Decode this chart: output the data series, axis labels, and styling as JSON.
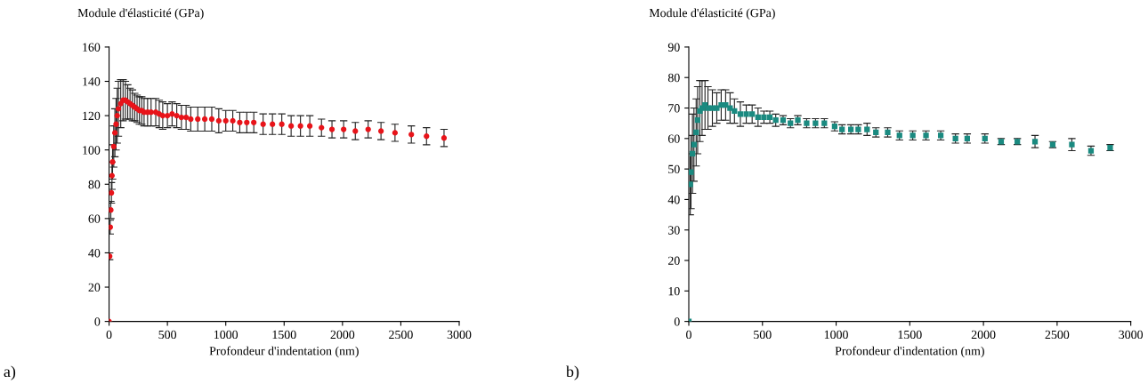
{
  "chart_data": [
    {
      "type": "scatter",
      "ylabel": "Module d'élasticité (GPa)",
      "xlabel": "Profondeur d'indentation (nm)",
      "annotations": [
        "a)"
      ],
      "marker": "circle",
      "grid": false,
      "xlim": [
        0,
        3000
      ],
      "ylim": [
        0,
        160
      ],
      "xticks": [
        0,
        500,
        1000,
        1500,
        2000,
        2500,
        3000
      ],
      "yticks": [
        0,
        20,
        40,
        60,
        80,
        100,
        120,
        140,
        160
      ],
      "series": [
        {
          "color": "#e8141a",
          "x": [
            0,
            5,
            10,
            15,
            20,
            25,
            30,
            40,
            50,
            60,
            70,
            80,
            100,
            120,
            140,
            160,
            180,
            200,
            220,
            240,
            260,
            280,
            300,
            330,
            360,
            400,
            430,
            460,
            500,
            540,
            580,
            620,
            660,
            700,
            760,
            820,
            880,
            940,
            1000,
            1060,
            1120,
            1180,
            1240,
            1320,
            1400,
            1480,
            1560,
            1640,
            1720,
            1820,
            1910,
            2010,
            2110,
            2220,
            2330,
            2450,
            2590,
            2720,
            2870
          ],
          "values": [
            0,
            38,
            55,
            65,
            75,
            85,
            93,
            102,
            110,
            115,
            120,
            124,
            127,
            129,
            129,
            128,
            127,
            126,
            125,
            124,
            123,
            123,
            122,
            122,
            122,
            122,
            121,
            120,
            120,
            121,
            120,
            119,
            119,
            118,
            118,
            118,
            118,
            117,
            117,
            117,
            116,
            116,
            116,
            115,
            115,
            115,
            114,
            114,
            114,
            113,
            112,
            112,
            111,
            112,
            111,
            110,
            109,
            108,
            107
          ],
          "errors": [
            0,
            2,
            4,
            5,
            6,
            8,
            10,
            12,
            14,
            15,
            16,
            16,
            14,
            12,
            11,
            10,
            9,
            9,
            8,
            8,
            8,
            8,
            8,
            8,
            8,
            8,
            8,
            8,
            7,
            7,
            7,
            7,
            7,
            7,
            7,
            7,
            7,
            7,
            6,
            6,
            6,
            6,
            6,
            6,
            6,
            6,
            6,
            6,
            6,
            5,
            5,
            5,
            5,
            5,
            5,
            5,
            5,
            5,
            5
          ]
        }
      ]
    },
    {
      "type": "scatter",
      "ylabel": "Module d'élasticité (GPa)",
      "xlabel": "Profondeur d'indentation (nm)",
      "annotations": [
        "b)"
      ],
      "marker": "square",
      "grid": false,
      "xlim": [
        0,
        3000
      ],
      "ylim": [
        0,
        90
      ],
      "xticks": [
        0,
        500,
        1000,
        1500,
        2000,
        2500,
        3000
      ],
      "yticks": [
        0,
        10,
        20,
        30,
        40,
        50,
        60,
        70,
        80,
        90
      ],
      "series": [
        {
          "color": "#1a8a80",
          "x": [
            0,
            10,
            15,
            25,
            35,
            50,
            60,
            75,
            90,
            110,
            130,
            160,
            190,
            220,
            250,
            280,
            310,
            350,
            390,
            430,
            470,
            510,
            550,
            590,
            640,
            690,
            740,
            800,
            860,
            920,
            990,
            1040,
            1100,
            1150,
            1210,
            1270,
            1350,
            1430,
            1520,
            1610,
            1710,
            1810,
            1890,
            2010,
            2120,
            2230,
            2350,
            2470,
            2600,
            2730,
            2860
          ],
          "values": [
            0,
            45,
            49,
            55,
            58,
            62,
            66,
            69,
            70,
            71,
            70,
            70,
            70,
            71,
            71,
            70,
            69,
            68,
            68,
            68,
            67,
            67,
            67,
            66,
            66,
            65,
            66,
            65,
            65,
            65,
            64,
            63,
            63,
            63,
            63,
            62,
            62,
            61,
            61,
            61,
            61,
            60,
            60,
            60,
            59,
            59,
            59,
            58,
            58,
            56,
            57
          ],
          "errors": [
            0,
            10,
            12,
            13,
            12,
            11,
            11,
            10,
            9,
            8,
            7,
            6,
            5,
            5,
            5,
            5,
            4,
            4,
            3,
            3,
            3,
            2,
            2,
            2,
            1.5,
            1.5,
            1.5,
            1.5,
            1.5,
            1.5,
            1.5,
            1.5,
            1.5,
            1.5,
            2,
            1.5,
            1.5,
            1.5,
            1.5,
            1.5,
            1.5,
            1.5,
            1.5,
            1.5,
            1,
            1,
            2,
            1,
            2,
            1.5,
            1
          ]
        }
      ]
    }
  ]
}
